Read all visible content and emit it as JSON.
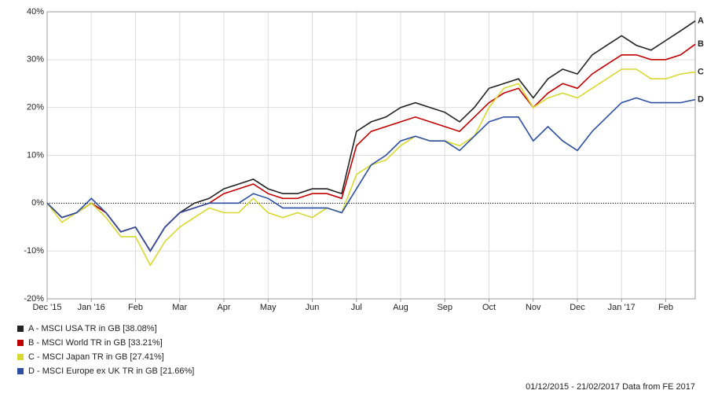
{
  "chart_data": {
    "type": "line",
    "categories": [
      "Dec '15",
      null,
      null,
      "Jan '16",
      null,
      null,
      "Feb",
      null,
      null,
      "Mar",
      null,
      null,
      "Apr",
      null,
      null,
      "May",
      null,
      null,
      "Jun",
      null,
      null,
      "Jul",
      null,
      null,
      "Aug",
      null,
      null,
      "Sep",
      null,
      null,
      "Oct",
      null,
      null,
      "Nov",
      null,
      null,
      "Dec",
      null,
      null,
      "Jan '17",
      null,
      null,
      "Feb",
      null,
      null
    ],
    "ylim": [
      -20,
      40
    ],
    "yticks": [
      {
        "value": -20,
        "label": "-20%"
      },
      {
        "value": -10,
        "label": "-10%"
      },
      {
        "value": 0,
        "label": "0%"
      },
      {
        "value": 10,
        "label": "10%"
      },
      {
        "value": 20,
        "label": "20%"
      },
      {
        "value": 30,
        "label": "30%"
      },
      {
        "value": 40,
        "label": "40%"
      }
    ],
    "grid": true,
    "series": [
      {
        "name": "A - MSCI USA TR in GB [38.08%]",
        "label": "A",
        "color": "#222222",
        "values": [
          0,
          -3,
          -2,
          0,
          -2,
          -6,
          -5,
          -10,
          -5,
          -2,
          0,
          1,
          3,
          4,
          5,
          3,
          2,
          2,
          3,
          3,
          2,
          15,
          17,
          18,
          20,
          21,
          20,
          19,
          17,
          20,
          24,
          25,
          26,
          22,
          26,
          28,
          27,
          31,
          33,
          35,
          33,
          32,
          34,
          36,
          38.08
        ]
      },
      {
        "name": "B - MSCI World TR in GB [33.21%]",
        "label": "B",
        "color": "#c00000",
        "values": [
          0,
          -3,
          -2,
          0,
          -2,
          -6,
          -5,
          -10,
          -5,
          -2,
          -1,
          0,
          2,
          3,
          4,
          2,
          1,
          1,
          2,
          2,
          1,
          12,
          15,
          16,
          17,
          18,
          17,
          16,
          15,
          18,
          21,
          23,
          24,
          20,
          23,
          25,
          24,
          27,
          29,
          31,
          31,
          30,
          30,
          31,
          33.21
        ]
      },
      {
        "name": "C - MSCI Japan TR in GB [27.41%]",
        "label": "C",
        "color": "#d8d832",
        "values": [
          0,
          -4,
          -2,
          0,
          -3,
          -7,
          -7,
          -13,
          -8,
          -5,
          -3,
          -1,
          -2,
          -2,
          1,
          -2,
          -3,
          -2,
          -3,
          -1,
          -2,
          6,
          8,
          9,
          12,
          14,
          13,
          13,
          12,
          14,
          20,
          24,
          25,
          20,
          22,
          23,
          22,
          24,
          26,
          28,
          28,
          26,
          26,
          27,
          27.41
        ]
      },
      {
        "name": "D - MSCI Europe ex UK TR in GB [21.66%]",
        "label": "D",
        "color": "#2d4fa0",
        "values": [
          0,
          -3,
          -2,
          1,
          -2,
          -6,
          -5,
          -10,
          -5,
          -2,
          -1,
          0,
          0,
          0,
          2,
          1,
          -1,
          -1,
          -1,
          -1,
          -2,
          3,
          8,
          10,
          13,
          14,
          13,
          13,
          11,
          14,
          17,
          18,
          18,
          13,
          16,
          13,
          11,
          15,
          18,
          21,
          22,
          21,
          21,
          21,
          21.66
        ]
      }
    ],
    "footer": "01/12/2015 - 21/02/2017 Data from FE 2017"
  }
}
